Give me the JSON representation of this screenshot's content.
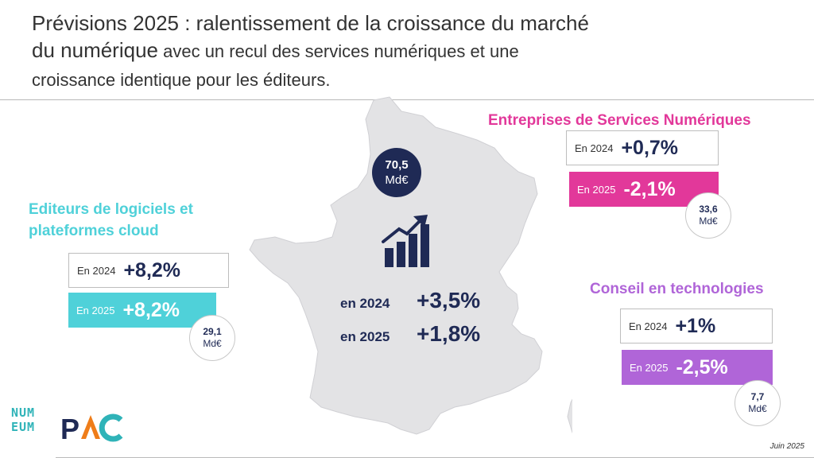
{
  "title": {
    "part1": "Prévisions 2025 : ralentissement de la croissance du marché",
    "part2": "du numérique",
    "part3": " avec un recul des services numériques et une",
    "part4": "croissance identique pour les éditeurs."
  },
  "center": {
    "total_value": "70,5",
    "total_unit": "Md€",
    "rows": [
      {
        "year": "en 2024",
        "value": "+3,5%"
      },
      {
        "year": "en 2025",
        "value": "+1,8%"
      }
    ],
    "icon": "growth-chart-icon"
  },
  "editeurs": {
    "title_line1": "Editeurs de logiciels et",
    "title_line2": "plateformes cloud",
    "color": "#4fd1d9",
    "rows": [
      {
        "year": "En 2024",
        "value": "+8,2%"
      },
      {
        "year": "En 2025",
        "value": "+8,2%"
      }
    ],
    "market_value": "29,1",
    "market_unit": "Md€"
  },
  "esn": {
    "title": "Entreprises de Services Numériques",
    "color": "#e2389a",
    "rows": [
      {
        "year": "En 2024",
        "value": "+0,7%"
      },
      {
        "year": "En 2025",
        "value": "-2,1%"
      }
    ],
    "market_value": "33,6",
    "market_unit": "Md€"
  },
  "conseil": {
    "title": "Conseil en technologies",
    "color": "#b065d8",
    "rows": [
      {
        "year": "En 2024",
        "value": "+1%"
      },
      {
        "year": "En 2025",
        "value": "-2,5%"
      }
    ],
    "market_value": "7,7",
    "market_unit": "Md€"
  },
  "logos": {
    "numeum": "NUMEUM",
    "pac": "PAC"
  },
  "footer": {
    "date": "Juin 2025"
  },
  "colors": {
    "navy": "#1f2a55",
    "map_fill": "#e3e3e5"
  }
}
